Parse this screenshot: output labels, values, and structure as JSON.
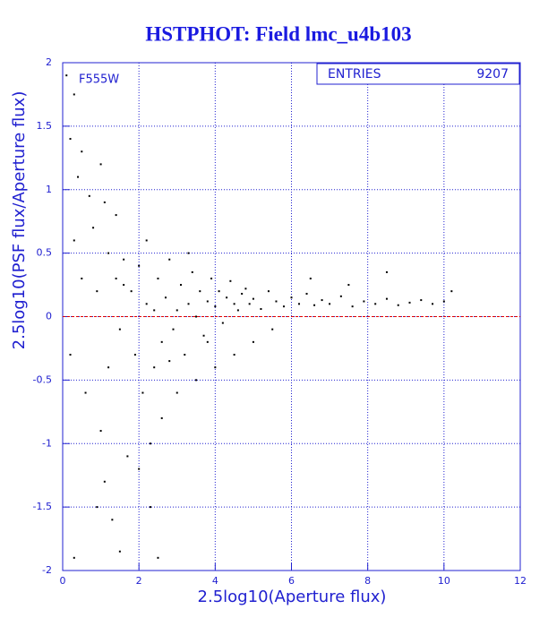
{
  "chart_data": {
    "type": "scatter",
    "title": "HSTPHOT: Field lmc_u4b103",
    "x_label": "2.5log10(Aperture flux)",
    "y_label": "2.5log10(PSF flux/Aperture flux)",
    "annotation": "F555W",
    "stats": {
      "label": "ENTRIES",
      "value": 9207
    },
    "reference_line": {
      "y": 0,
      "color": "#e00000"
    },
    "xlim": [
      0,
      12
    ],
    "ylim": [
      -2,
      2
    ],
    "xticks": [
      0,
      2,
      4,
      6,
      8,
      10,
      12
    ],
    "yticks": [
      -2,
      -1.5,
      -1,
      -0.5,
      0,
      0.5,
      1,
      1.5,
      2
    ],
    "grid": true,
    "axis_color": "#2020d0",
    "series": [
      {
        "color": "#000000",
        "x": [
          0.1,
          0.3,
          0.2,
          0.5,
          0.4,
          0.7,
          1.0,
          1.1,
          0.8,
          0.3,
          0.5,
          0.9,
          1.2,
          1.4,
          1.6,
          1.8,
          1.5,
          1.9,
          2.0,
          2.2,
          2.1,
          2.3,
          2.4,
          2.5,
          2.6,
          2.7,
          2.8,
          2.9,
          3.0,
          3.1,
          3.2,
          3.3,
          3.4,
          3.5,
          3.6,
          3.7,
          3.8,
          3.9,
          4.0,
          4.1,
          4.2,
          4.3,
          4.4,
          4.5,
          4.6,
          4.7,
          4.8,
          4.9,
          5.0,
          5.2,
          5.4,
          5.6,
          5.8,
          6.0,
          6.2,
          6.4,
          6.6,
          6.8,
          7.0,
          7.3,
          7.6,
          7.9,
          8.2,
          8.5,
          8.8,
          9.1,
          9.4,
          9.7,
          10.0,
          10.2,
          0.2,
          0.6,
          1.0,
          1.1,
          1.3,
          1.5,
          0.9,
          0.3,
          2.0,
          2.3,
          2.5,
          1.7,
          2.6,
          3.0,
          3.5,
          4.0,
          4.5,
          5.0,
          5.5,
          6.5,
          7.5,
          8.5,
          1.2,
          2.8,
          3.3,
          2.2,
          1.4,
          1.6,
          2.4,
          3.8
        ],
        "values": [
          1.9,
          1.75,
          1.4,
          1.3,
          1.1,
          0.95,
          1.2,
          0.9,
          0.7,
          0.6,
          0.3,
          0.2,
          0.5,
          0.3,
          0.45,
          0.2,
          -0.1,
          -0.3,
          0.4,
          0.1,
          -0.6,
          -1.0,
          -0.4,
          0.3,
          -0.2,
          0.15,
          0.45,
          -0.1,
          0.05,
          0.25,
          -0.3,
          0.1,
          0.35,
          0.0,
          0.2,
          -0.15,
          0.12,
          0.3,
          0.08,
          0.2,
          -0.05,
          0.15,
          0.28,
          0.1,
          0.05,
          0.18,
          0.22,
          0.1,
          0.14,
          0.06,
          0.2,
          0.12,
          0.08,
          0.15,
          0.1,
          0.18,
          0.09,
          0.13,
          0.1,
          0.16,
          0.08,
          0.12,
          0.1,
          0.14,
          0.09,
          0.11,
          0.13,
          0.1,
          0.12,
          0.2,
          -0.3,
          -0.6,
          -0.9,
          -1.3,
          -1.6,
          -1.85,
          -1.5,
          -1.9,
          -1.2,
          -1.5,
          -1.9,
          -1.1,
          -0.8,
          -0.6,
          -0.5,
          -0.4,
          -0.3,
          -0.2,
          -0.1,
          0.3,
          0.25,
          0.35,
          -0.4,
          -0.35,
          0.5,
          0.6,
          0.8,
          0.25,
          0.05,
          -0.2
        ]
      }
    ]
  }
}
